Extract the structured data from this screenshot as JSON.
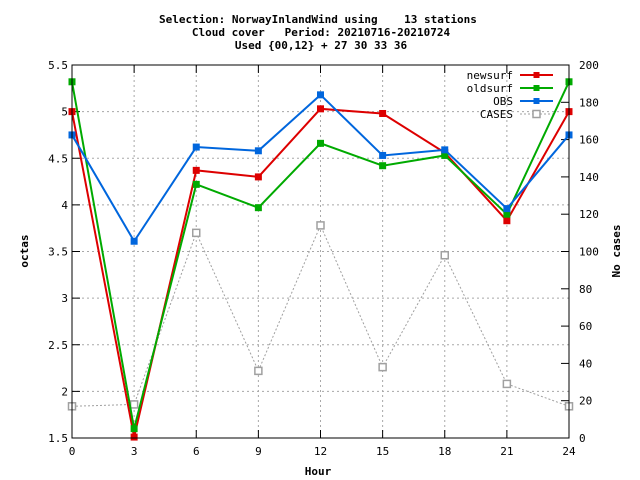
{
  "chart_data": {
    "type": "line",
    "title_lines": [
      "Selection: NorwayInlandWind using    13 stations",
      "Cloud cover   Period: 20210716-20210724",
      "Used {00,12} + 27 30 33 36"
    ],
    "xlabel": "Hour",
    "ylabel": "octas",
    "y2label": "No cases",
    "x": [
      0,
      3,
      6,
      9,
      12,
      15,
      18,
      21,
      24
    ],
    "xlim": [
      0,
      24
    ],
    "ylim": [
      1.5,
      5.5
    ],
    "y2lim": [
      0,
      200
    ],
    "xticks": [
      "0",
      "3",
      "6",
      "9",
      "12",
      "15",
      "18",
      "21",
      "24"
    ],
    "yticks": [
      "1.5",
      "2",
      "2.5",
      "3",
      "3.5",
      "4",
      "4.5",
      "5",
      "5.5"
    ],
    "y2ticks": [
      "0",
      "20",
      "40",
      "60",
      "80",
      "100",
      "120",
      "140",
      "160",
      "180",
      "200"
    ],
    "grid": true,
    "legend_position": "top-right",
    "series": [
      {
        "name": "newsurf",
        "axis": "y",
        "color": "#dd0000",
        "marker": "filled-square",
        "dashed": false,
        "values": [
          5.0,
          1.51,
          4.37,
          4.3,
          5.03,
          4.98,
          4.56,
          3.83,
          5.0
        ]
      },
      {
        "name": "oldsurf",
        "axis": "y",
        "color": "#00aa00",
        "marker": "filled-square",
        "dashed": false,
        "values": [
          5.32,
          1.6,
          4.22,
          3.97,
          4.66,
          4.42,
          4.53,
          3.9,
          5.32
        ]
      },
      {
        "name": "OBS",
        "axis": "y",
        "color": "#0066dd",
        "marker": "filled-square",
        "dashed": false,
        "values": [
          4.75,
          3.61,
          4.62,
          4.58,
          5.18,
          4.53,
          4.59,
          3.96,
          4.75
        ]
      },
      {
        "name": "CASES",
        "axis": "y2",
        "color": "#a0a0a0",
        "marker": "open-square",
        "dashed": true,
        "values": [
          17,
          18,
          110,
          36,
          114,
          38,
          98,
          29,
          17
        ]
      }
    ]
  }
}
